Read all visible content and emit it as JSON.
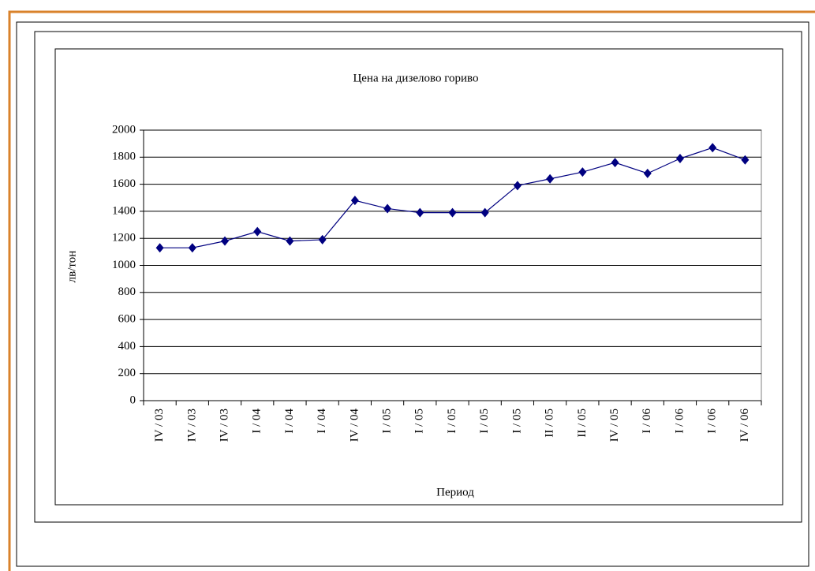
{
  "chart_data": {
    "type": "line",
    "title": "Цена на дизелово гориво",
    "x_label": "Период",
    "y_label": "лв/тон",
    "categories": [
      "IV / 03",
      "IV / 03",
      "IV / 03",
      "I / 04",
      "I / 04",
      "I / 04",
      "IV / 04",
      "I / 05",
      "I / 05",
      "I / 05",
      "I / 05",
      "I / 05",
      "II / 05",
      "II / 05",
      "IV / 05",
      "I / 06",
      "I / 06",
      "I / 06",
      "IV / 06"
    ],
    "series": [
      {
        "color": "#000080",
        "values": [
          1130,
          1130,
          1180,
          1250,
          1180,
          1190,
          1480,
          1420,
          1390,
          1390,
          1390,
          1590,
          1640,
          1690,
          1760,
          1680,
          1790,
          1870,
          1780
        ]
      }
    ],
    "ylim": [
      0,
      2000
    ],
    "yticks": [
      0,
      200,
      400,
      600,
      800,
      1000,
      1200,
      1400,
      1600,
      1800,
      2000
    ],
    "grid": true
  }
}
